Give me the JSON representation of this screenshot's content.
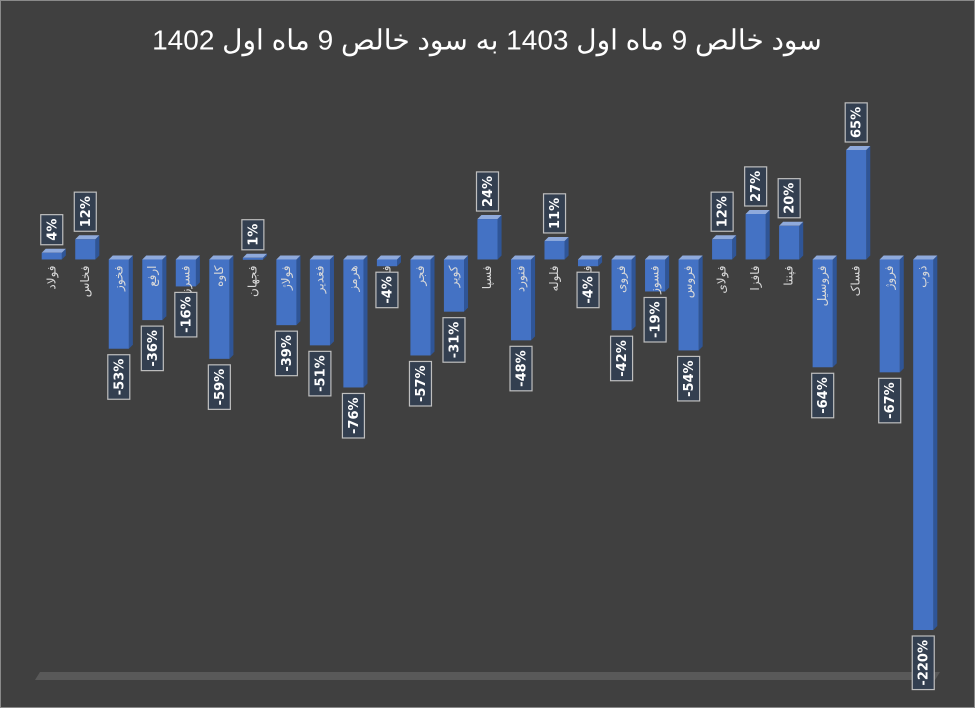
{
  "chart_data": {
    "type": "bar",
    "title": "سود خالص 9 ماه اول 1403 به سود خالص 9 ماه اول 1402",
    "categories": [
      "فولاد",
      "فخاس",
      "فخوز",
      "ارفع",
      "فسرزاد",
      "کاوه",
      "فجهان",
      "فولاژ",
      "فغدیر",
      "هرمز",
      "فوکا",
      "فجر",
      "کویر",
      "فسپا",
      "فنورد",
      "فلوله",
      "فسازان",
      "فروی",
      "فسوز",
      "فروس",
      "فولای",
      "فافزا",
      "فپنتا",
      "فروسیل",
      "فساک",
      "فروژ",
      "ذوب"
    ],
    "values": [
      4,
      12,
      -53,
      -36,
      -16,
      -59,
      1,
      -39,
      -51,
      -76,
      -4,
      -57,
      -31,
      24,
      -48,
      11,
      -4,
      -42,
      -19,
      -54,
      12,
      27,
      20,
      -64,
      65,
      -67,
      -220
    ],
    "value_labels": [
      "4%",
      "12%",
      "-53%",
      "-36%",
      "-16%",
      "-59%",
      "1%",
      "-39%",
      "-51%",
      "-76%",
      "-4%",
      "-57%",
      "-31%",
      "24%",
      "-48%",
      "11%",
      "-4%",
      "-42%",
      "-19%",
      "-54%",
      "12%",
      "27%",
      "20%",
      "-64%",
      "65%",
      "-67%",
      "-220%"
    ],
    "color": "#4472c4"
  }
}
